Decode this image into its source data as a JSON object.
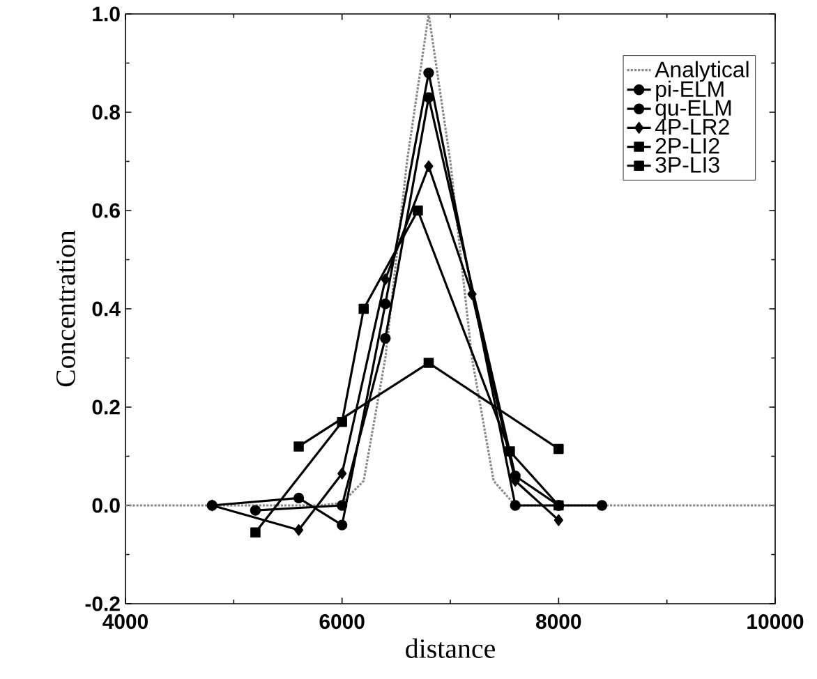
{
  "chart_data": {
    "type": "line",
    "xlabel": "distance",
    "ylabel": "Concentration",
    "xlim": [
      4000,
      10000
    ],
    "xticks": [
      4000,
      6000,
      8000,
      10000
    ],
    "ylim": [
      -0.2,
      1.0
    ],
    "yticks": [
      {
        "value": -0.2,
        "label": "-0.2"
      },
      {
        "value": 0,
        "label": "0.0"
      },
      {
        "value": 0.2,
        "label": "0.2"
      },
      {
        "value": 0.4,
        "label": "0.4"
      },
      {
        "value": 0.6,
        "label": "0.6"
      },
      {
        "value": 0.8,
        "label": "0.8"
      },
      {
        "value": 1.0,
        "label": "1.0"
      }
    ],
    "legend": "top right",
    "grid": false,
    "series": [
      {
        "name": "Analytical",
        "color": "#888888",
        "marker": "none",
        "line_style": "dotted",
        "x": [
          4000,
          5800,
          6000,
          6200,
          6400,
          6600,
          6800,
          7000,
          7200,
          7400,
          7600,
          10000
        ],
        "values": [
          0,
          0,
          0.005,
          0.05,
          0.3,
          0.7,
          1.0,
          0.7,
          0.3,
          0.05,
          0,
          0
        ]
      },
      {
        "name": "pi-ELM",
        "color": "#000000",
        "marker": "circle",
        "line_style": "solid",
        "x": [
          4800,
          5600,
          6000,
          6400,
          6800,
          7600,
          8000
        ],
        "values": [
          0,
          0.015,
          -0.04,
          0.41,
          0.88,
          0,
          0
        ]
      },
      {
        "name": "qu-ELM",
        "color": "#000000",
        "marker": "circle",
        "line_style": "solid",
        "x": [
          5200,
          6000,
          6400,
          6800,
          7600,
          8000,
          8400
        ],
        "values": [
          -0.01,
          0,
          0.34,
          0.83,
          0.06,
          0,
          0
        ]
      },
      {
        "name": "4P-LR2",
        "color": "#000000",
        "marker": "diamond",
        "line_style": "solid",
        "x": [
          4800,
          5600,
          6000,
          6400,
          6800,
          7200,
          7600,
          8000
        ],
        "values": [
          0,
          -0.05,
          0.065,
          0.46,
          0.69,
          0.43,
          0.05,
          -0.03
        ]
      },
      {
        "name": "2P-LI2",
        "color": "#000000",
        "marker": "square",
        "line_style": "solid",
        "x": [
          5600,
          6800,
          8000
        ],
        "values": [
          0.12,
          0.29,
          0.115
        ]
      },
      {
        "name": "3P-LI3",
        "color": "#000000",
        "marker": "square",
        "line_style": "solid",
        "x": [
          5200,
          6000,
          6200,
          6700,
          7550,
          8000
        ],
        "values": [
          -0.055,
          0.17,
          0.4,
          0.6,
          0.11,
          0
        ]
      }
    ]
  }
}
